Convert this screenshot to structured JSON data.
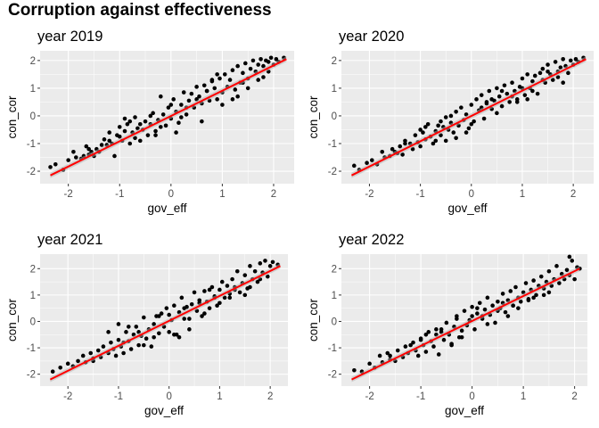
{
  "title": "Corruption against effectiveness",
  "colors": {
    "panel_bg": "#ebebeb",
    "grid": "#ffffff",
    "point": "#000000",
    "fit_line": "#ff0000",
    "ci_band": "#b3b3b3"
  },
  "chart_data": [
    {
      "type": "scatter",
      "subtitle": "year 2019",
      "xlabel": "gov_eff",
      "ylabel": "con_cor",
      "xlim": [
        -2.55,
        2.4
      ],
      "ylim": [
        -2.45,
        2.35
      ],
      "xticks": [
        -2,
        -1,
        0,
        1,
        2
      ],
      "yticks": [
        -2,
        -1,
        0,
        1,
        2
      ],
      "grid": true,
      "smooth": "lm",
      "fit": {
        "x": [
          -2.35,
          2.25
        ],
        "y": [
          -2.15,
          2.05
        ]
      },
      "points": {
        "x": [
          -2.35,
          -2.25,
          -2.1,
          -2.0,
          -1.9,
          -1.85,
          -1.75,
          -1.7,
          -1.65,
          -1.6,
          -1.55,
          -1.5,
          -1.45,
          -1.4,
          -1.35,
          -1.3,
          -1.25,
          -1.2,
          -1.15,
          -1.1,
          -1.05,
          -1.0,
          -0.95,
          -0.9,
          -0.85,
          -0.8,
          -0.75,
          -0.7,
          -0.65,
          -0.6,
          -0.55,
          -0.5,
          -0.45,
          -0.4,
          -0.35,
          -0.3,
          -0.25,
          -0.2,
          -0.15,
          -0.1,
          -0.05,
          0.0,
          0.05,
          0.1,
          0.15,
          0.2,
          0.25,
          0.3,
          0.35,
          0.4,
          0.45,
          0.5,
          0.55,
          0.6,
          0.65,
          0.7,
          0.75,
          0.8,
          0.85,
          0.9,
          0.95,
          1.0,
          1.05,
          1.1,
          1.15,
          1.2,
          1.25,
          1.3,
          1.35,
          1.4,
          1.45,
          1.5,
          1.55,
          1.6,
          1.65,
          1.7,
          1.75,
          1.8,
          1.85,
          1.9,
          1.95,
          2.0,
          2.05,
          2.1,
          2.2,
          -1.2,
          -0.9,
          -0.6,
          -0.3,
          0.0,
          0.3,
          0.6,
          0.9,
          1.2,
          1.5,
          1.8,
          -0.8,
          -0.4,
          0.2,
          0.8,
          1.4,
          -1.6,
          -1.0,
          -0.2,
          0.5,
          1.0,
          1.7,
          -0.7,
          0.1,
          0.7,
          1.3,
          1.9
        ],
        "y": [
          -1.85,
          -1.75,
          -1.95,
          -1.6,
          -1.3,
          -1.5,
          -1.55,
          -1.45,
          -1.1,
          -1.4,
          -1.3,
          -1.45,
          -1.2,
          -1.3,
          -1.05,
          -0.85,
          -1.05,
          -0.9,
          -1.0,
          -1.45,
          -0.7,
          -0.75,
          -0.9,
          -0.55,
          -0.3,
          -1.0,
          -0.6,
          -0.05,
          -0.45,
          -0.9,
          -0.5,
          -0.2,
          -0.7,
          -0.3,
          0.1,
          -0.55,
          -0.15,
          -0.4,
          0.05,
          -0.35,
          0.3,
          -0.1,
          0.6,
          0.15,
          -0.25,
          0.4,
          0.85,
          0.05,
          0.55,
          0.8,
          0.3,
          1.05,
          0.7,
          0.45,
          1.1,
          0.9,
          0.55,
          1.25,
          1.0,
          0.6,
          1.35,
          0.85,
          1.5,
          1.05,
          1.3,
          1.65,
          0.95,
          1.8,
          1.2,
          1.55,
          1.9,
          1.35,
          1.7,
          2.0,
          1.6,
          1.85,
          2.05,
          1.8,
          2.0,
          1.95,
          2.1,
          1.85,
          2.05,
          1.95,
          2.1,
          -0.6,
          -0.1,
          -0.3,
          -0.7,
          0.4,
          0.3,
          -0.2,
          1.5,
          0.6,
          1.0,
          1.4,
          -0.2,
          0.0,
          -0.05,
          1.3,
          1.2,
          -1.2,
          -0.4,
          0.7,
          0.6,
          0.4,
          1.3,
          -0.8,
          -0.6,
          0.9,
          0.7,
          1.6
        ]
      }
    },
    {
      "type": "scatter",
      "subtitle": "year 2020",
      "xlabel": "gov_eff",
      "ylabel": "con_cor",
      "xlim": [
        -2.55,
        2.4
      ],
      "ylim": [
        -2.45,
        2.35
      ],
      "xticks": [
        -2,
        -1,
        0,
        1,
        2
      ],
      "yticks": [
        -2,
        -1,
        0,
        1,
        2
      ],
      "grid": true,
      "smooth": "lm",
      "fit": {
        "x": [
          -2.35,
          2.25
        ],
        "y": [
          -2.15,
          2.05
        ]
      },
      "points": {
        "x": [
          -2.3,
          -2.2,
          -2.05,
          -1.95,
          -1.85,
          -1.75,
          -1.7,
          -1.6,
          -1.55,
          -1.45,
          -1.4,
          -1.35,
          -1.3,
          -1.2,
          -1.15,
          -1.1,
          -1.05,
          -1.0,
          -0.95,
          -0.9,
          -0.85,
          -0.8,
          -0.75,
          -0.7,
          -0.65,
          -0.6,
          -0.55,
          -0.5,
          -0.45,
          -0.4,
          -0.35,
          -0.3,
          -0.25,
          -0.2,
          -0.15,
          -0.1,
          -0.05,
          0.0,
          0.05,
          0.1,
          0.15,
          0.2,
          0.25,
          0.3,
          0.35,
          0.4,
          0.45,
          0.5,
          0.55,
          0.6,
          0.65,
          0.7,
          0.75,
          0.8,
          0.85,
          0.9,
          0.95,
          1.0,
          1.05,
          1.1,
          1.15,
          1.2,
          1.25,
          1.3,
          1.35,
          1.4,
          1.45,
          1.5,
          1.55,
          1.6,
          1.65,
          1.7,
          1.75,
          1.8,
          1.85,
          1.9,
          1.95,
          2.0,
          2.05,
          2.1,
          2.2,
          -1.0,
          -0.7,
          -0.4,
          -0.1,
          0.2,
          0.5,
          0.8,
          1.1,
          1.4,
          1.7,
          -1.3,
          -0.6,
          0.0,
          0.6,
          1.2,
          1.8,
          -0.9,
          -0.3,
          0.4,
          1.0,
          1.5,
          -1.5,
          -0.5,
          0.3,
          0.9
        ],
        "y": [
          -1.8,
          -1.95,
          -1.7,
          -1.6,
          -1.75,
          -1.3,
          -1.5,
          -1.45,
          -1.2,
          -1.35,
          -1.1,
          -1.4,
          -0.9,
          -1.0,
          -1.2,
          -0.7,
          -0.95,
          -1.1,
          -0.6,
          -0.85,
          -0.3,
          -0.75,
          -1.0,
          -0.55,
          -0.35,
          -0.7,
          -0.4,
          -0.05,
          -0.5,
          -0.25,
          -0.6,
          0.15,
          -0.35,
          0.3,
          -0.15,
          0.05,
          -0.45,
          0.4,
          -0.2,
          0.6,
          0.2,
          0.75,
          -0.1,
          0.45,
          0.9,
          0.25,
          0.55,
          1.0,
          0.7,
          0.35,
          1.1,
          0.8,
          0.5,
          1.2,
          0.9,
          0.6,
          1.05,
          1.35,
          0.75,
          1.5,
          1.0,
          1.25,
          1.45,
          0.8,
          1.55,
          1.7,
          1.2,
          1.85,
          1.5,
          1.3,
          1.95,
          1.6,
          1.75,
          2.05,
          1.8,
          1.55,
          2.0,
          1.85,
          2.05,
          1.95,
          2.1,
          -0.5,
          -0.9,
          0.0,
          -0.6,
          0.3,
          0.1,
          0.7,
          0.6,
          1.3,
          1.4,
          -1.0,
          -0.2,
          -0.3,
          0.9,
          0.9,
          1.2,
          -0.4,
          -0.8,
          0.6,
          1.0,
          1.6,
          -1.3,
          -0.9,
          0.5,
          0.5
        ]
      }
    },
    {
      "type": "scatter",
      "subtitle": "year 2021",
      "xlabel": "gov_eff",
      "ylabel": "con_cor",
      "xlim": [
        -2.55,
        2.35
      ],
      "ylim": [
        -2.45,
        2.55
      ],
      "xticks": [
        -2,
        -1,
        0,
        1,
        2
      ],
      "yticks": [
        -2,
        -1,
        0,
        1,
        2
      ],
      "grid": true,
      "smooth": "lm",
      "fit": {
        "x": [
          -2.35,
          2.2
        ],
        "y": [
          -2.2,
          2.1
        ]
      },
      "points": {
        "x": [
          -2.3,
          -2.15,
          -2.0,
          -1.9,
          -1.8,
          -1.7,
          -1.65,
          -1.55,
          -1.5,
          -1.4,
          -1.35,
          -1.3,
          -1.2,
          -1.15,
          -1.1,
          -1.05,
          -1.0,
          -0.95,
          -0.9,
          -0.85,
          -0.8,
          -0.75,
          -0.7,
          -0.65,
          -0.6,
          -0.55,
          -0.5,
          -0.45,
          -0.4,
          -0.35,
          -0.3,
          -0.25,
          -0.2,
          -0.15,
          -0.1,
          -0.05,
          0.0,
          0.05,
          0.1,
          0.15,
          0.2,
          0.25,
          0.3,
          0.35,
          0.4,
          0.45,
          0.5,
          0.55,
          0.6,
          0.65,
          0.7,
          0.75,
          0.8,
          0.85,
          0.9,
          0.95,
          1.0,
          1.05,
          1.1,
          1.15,
          1.2,
          1.25,
          1.3,
          1.35,
          1.4,
          1.45,
          1.5,
          1.55,
          1.6,
          1.65,
          1.7,
          1.75,
          1.8,
          1.85,
          1.9,
          1.95,
          2.0,
          2.05,
          2.15,
          -1.2,
          -0.8,
          -0.5,
          -0.2,
          0.1,
          0.4,
          0.7,
          1.0,
          1.3,
          1.6,
          -1.0,
          -0.3,
          0.3,
          0.9,
          1.5,
          -0.6,
          0.0,
          0.6,
          1.2,
          1.8,
          -1.5,
          -0.9,
          0.2,
          0.8
        ],
        "y": [
          -1.9,
          -1.75,
          -1.6,
          -1.7,
          -1.5,
          -1.3,
          -1.55,
          -1.2,
          -1.4,
          -1.1,
          -1.35,
          -0.95,
          -1.2,
          -0.8,
          -1.05,
          -1.3,
          -0.7,
          -0.95,
          -1.2,
          -0.4,
          -0.75,
          -1.05,
          -0.5,
          -0.2,
          -0.9,
          -0.55,
          0.15,
          -0.65,
          -0.3,
          -0.95,
          -0.1,
          0.2,
          -0.45,
          0.3,
          -0.2,
          0.5,
          -0.4,
          0.05,
          0.6,
          -0.5,
          0.35,
          0.9,
          0.1,
          0.55,
          -0.3,
          0.65,
          1.1,
          0.4,
          0.8,
          0.2,
          1.15,
          0.75,
          0.5,
          1.3,
          0.95,
          0.6,
          1.2,
          1.5,
          0.9,
          1.35,
          1.05,
          1.6,
          1.3,
          1.9,
          1.1,
          1.45,
          1.75,
          1.25,
          2.1,
          1.6,
          1.9,
          1.5,
          2.2,
          1.85,
          2.3,
          1.7,
          2.1,
          2.25,
          2.15,
          -0.4,
          -0.2,
          -0.9,
          0.2,
          -0.5,
          0.1,
          0.3,
          0.7,
          1.2,
          1.3,
          -0.1,
          -0.6,
          0.5,
          0.9,
          1.0,
          -0.4,
          0.25,
          0.7,
          0.9,
          1.6,
          -1.5,
          -0.8,
          -0.6,
          1.2
        ]
      }
    },
    {
      "type": "scatter",
      "subtitle": "year 2022",
      "xlabel": "gov_eff",
      "ylabel": "con_cor",
      "xlim": [
        -2.55,
        2.25
      ],
      "ylim": [
        -2.45,
        2.55
      ],
      "xticks": [
        -2,
        -1,
        0,
        1,
        2
      ],
      "yticks": [
        -2,
        -1,
        0,
        1,
        2
      ],
      "grid": true,
      "smooth": "lm",
      "fit": {
        "x": [
          -2.35,
          2.1
        ],
        "y": [
          -2.2,
          2.0
        ]
      },
      "points": {
        "x": [
          -2.3,
          -2.15,
          -2.0,
          -1.9,
          -1.8,
          -1.75,
          -1.65,
          -1.6,
          -1.5,
          -1.45,
          -1.35,
          -1.3,
          -1.25,
          -1.15,
          -1.1,
          -1.05,
          -1.0,
          -0.95,
          -0.9,
          -0.85,
          -0.8,
          -0.75,
          -0.7,
          -0.65,
          -0.6,
          -0.55,
          -0.5,
          -0.45,
          -0.4,
          -0.35,
          -0.3,
          -0.25,
          -0.2,
          -0.15,
          -0.1,
          -0.05,
          0.0,
          0.05,
          0.1,
          0.15,
          0.2,
          0.25,
          0.3,
          0.35,
          0.4,
          0.45,
          0.5,
          0.55,
          0.6,
          0.65,
          0.7,
          0.75,
          0.8,
          0.85,
          0.9,
          0.95,
          1.0,
          1.05,
          1.1,
          1.15,
          1.2,
          1.25,
          1.3,
          1.35,
          1.4,
          1.45,
          1.5,
          1.55,
          1.6,
          1.65,
          1.7,
          1.75,
          1.8,
          1.85,
          1.9,
          1.95,
          2.0,
          2.05,
          2.1,
          -1.2,
          -0.9,
          -0.6,
          -0.3,
          0.0,
          0.3,
          0.6,
          0.9,
          1.2,
          1.5,
          -1.0,
          -0.4,
          0.2,
          0.8,
          1.4,
          1.9,
          -0.7,
          0.1,
          0.5,
          1.1,
          -1.6,
          -0.2,
          0.7
        ],
        "y": [
          -1.85,
          -1.9,
          -1.6,
          -1.75,
          -1.3,
          -1.55,
          -1.2,
          -1.45,
          -1.5,
          -1.1,
          -1.35,
          -0.95,
          -1.2,
          -0.8,
          -1.1,
          -1.3,
          -0.65,
          -0.9,
          -1.15,
          -0.4,
          -0.75,
          -0.95,
          -0.5,
          -1.25,
          -0.3,
          -0.7,
          -0.05,
          -0.5,
          -0.85,
          -0.2,
          0.2,
          -0.6,
          -0.35,
          0.4,
          -0.15,
          0.05,
          0.55,
          -0.3,
          0.3,
          0.7,
          0.1,
          0.45,
          0.9,
          0.25,
          0.6,
          -0.05,
          0.75,
          0.5,
          1.05,
          0.35,
          0.8,
          1.15,
          0.6,
          1.3,
          0.9,
          0.75,
          1.1,
          1.45,
          0.85,
          1.2,
          1.55,
          1.0,
          1.35,
          1.7,
          1.25,
          1.5,
          1.9,
          1.35,
          1.6,
          2.1,
          1.45,
          1.8,
          1.6,
          1.95,
          1.75,
          2.3,
          1.6,
          2.05,
          2.0,
          -0.9,
          -0.5,
          -0.4,
          0.1,
          0.2,
          -0.1,
          0.7,
          0.5,
          0.9,
          1.1,
          -0.7,
          -0.9,
          0.2,
          0.6,
          1.0,
          2.45,
          -0.3,
          0.5,
          0.4,
          0.8,
          -1.3,
          -0.6,
          0.2
        ]
      }
    }
  ]
}
